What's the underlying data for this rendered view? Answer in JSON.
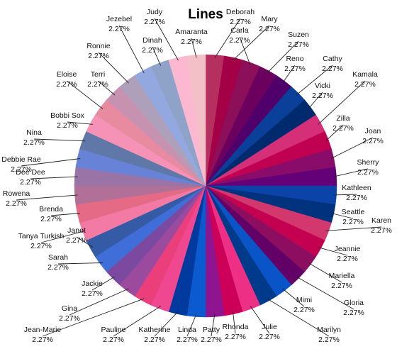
{
  "chart_data": {
    "type": "pie",
    "title": "Lines",
    "value_format": "2.27%",
    "start_angle_deg": 0,
    "direction": "clockwise",
    "slices": [
      {
        "name": "Deborah",
        "value": 2.27,
        "color": "#b5305f"
      },
      {
        "name": "Mary",
        "value": 2.27,
        "color": "#a30048"
      },
      {
        "name": "Carla",
        "value": 2.27,
        "color": "#8c0f5a"
      },
      {
        "name": "Suzen",
        "value": 2.27,
        "color": "#6b005e"
      },
      {
        "name": "Reno",
        "value": 2.27,
        "color": "#50006a"
      },
      {
        "name": "Cathy",
        "value": 2.27,
        "color": "#0a3f9a"
      },
      {
        "name": "Vicki",
        "value": 2.27,
        "color": "#002a6e"
      },
      {
        "name": "Kamala",
        "value": 2.27,
        "color": "#d52f7a"
      },
      {
        "name": "Zilla",
        "value": 2.27,
        "color": "#c00050"
      },
      {
        "name": "Joan",
        "value": 2.27,
        "color": "#8a0c6a"
      },
      {
        "name": "Sherry",
        "value": 2.27,
        "color": "#640078"
      },
      {
        "name": "Kathleen",
        "value": 2.27,
        "color": "#0a44a8"
      },
      {
        "name": "Seattle",
        "value": 2.27,
        "color": "#00327e"
      },
      {
        "name": "Karen",
        "value": 2.27,
        "color": "#d2386e"
      },
      {
        "name": "Jeannie",
        "value": 2.27,
        "color": "#c40051"
      },
      {
        "name": "Mariella",
        "value": 2.27,
        "color": "#8d0e60"
      },
      {
        "name": "Gloria",
        "value": 2.27,
        "color": "#620068"
      },
      {
        "name": "Mimi",
        "value": 2.27,
        "color": "#0955c7"
      },
      {
        "name": "Marilyn",
        "value": 2.27,
        "color": "#003b8b"
      },
      {
        "name": "Julie",
        "value": 2.27,
        "color": "#ed2f85"
      },
      {
        "name": "Rhonda",
        "value": 2.27,
        "color": "#cc0058"
      },
      {
        "name": "Patty",
        "value": 2.27,
        "color": "#8f1490"
      },
      {
        "name": "Linda",
        "value": 2.27,
        "color": "#0b5ad0"
      },
      {
        "name": "Katherine",
        "value": 2.27,
        "color": "#003a9f"
      },
      {
        "name": "Pauline",
        "value": 2.27,
        "color": "#f04890"
      },
      {
        "name": "Jean-Marie",
        "value": 2.27,
        "color": "#ea3f7b"
      },
      {
        "name": "Gina",
        "value": 2.27,
        "color": "#9c4a9e"
      },
      {
        "name": "Jackie",
        "value": 2.27,
        "color": "#7b4aa0"
      },
      {
        "name": "Sarah",
        "value": 2.27,
        "color": "#3f6ed8"
      },
      {
        "name": "Janet",
        "value": 2.27,
        "color": "#355aa6"
      },
      {
        "name": "Tanya Turkish",
        "value": 2.27,
        "color": "#f27aa4"
      },
      {
        "name": "Brenda",
        "value": 2.27,
        "color": "#e46a86"
      },
      {
        "name": "Rowena",
        "value": 2.27,
        "color": "#b07098"
      },
      {
        "name": "Dee Dee",
        "value": 2.27,
        "color": "#9a74a6"
      },
      {
        "name": "Debbie Rae",
        "value": 2.27,
        "color": "#6882d8"
      },
      {
        "name": "Nina",
        "value": 2.27,
        "color": "#5f78a8"
      },
      {
        "name": "Bobbi Sox",
        "value": 2.27,
        "color": "#f592b6"
      },
      {
        "name": "Eloise",
        "value": 2.27,
        "color": "#e88aa0"
      },
      {
        "name": "Terri",
        "value": 2.27,
        "color": "#c792b0"
      },
      {
        "name": "Ronnie",
        "value": 2.27,
        "color": "#aea0bb"
      },
      {
        "name": "Jezebel",
        "value": 2.27,
        "color": "#94a8e0"
      },
      {
        "name": "Dinah",
        "value": 2.27,
        "color": "#8fa2c8"
      },
      {
        "name": "Judy",
        "value": 2.27,
        "color": "#fbb8d0"
      },
      {
        "name": "Amaranta",
        "value": 2.27,
        "color": "#f4c0c8"
      }
    ]
  }
}
